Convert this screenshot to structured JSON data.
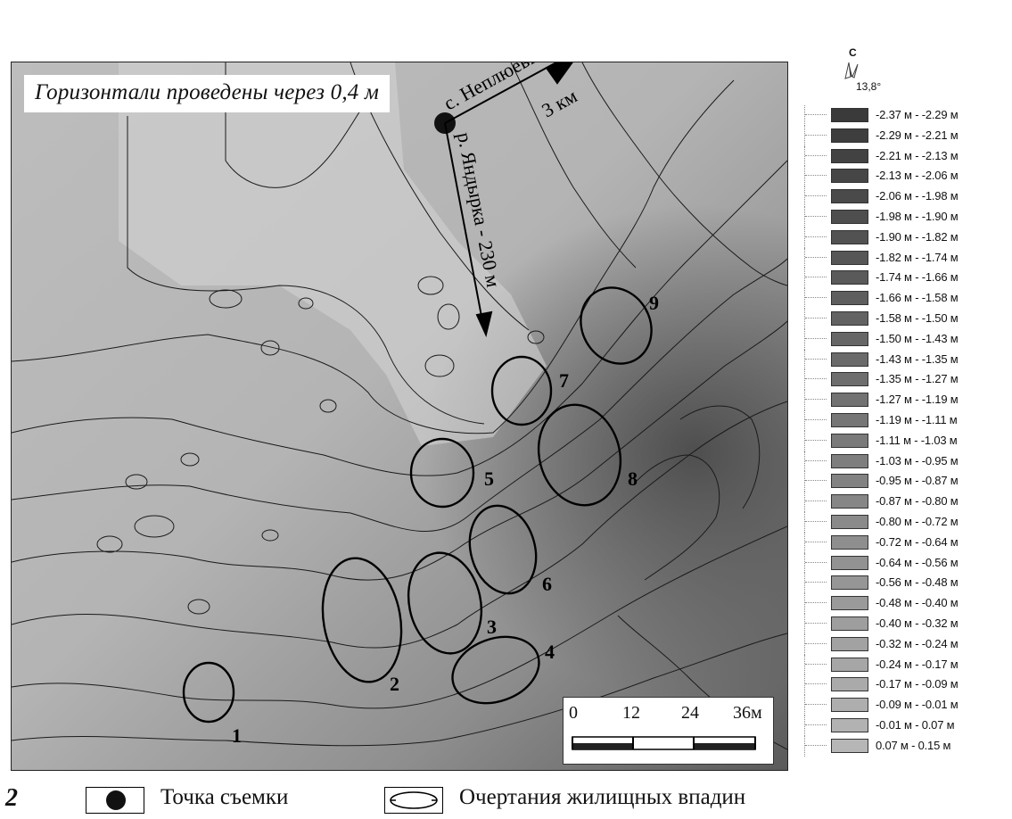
{
  "figure_number": "2",
  "map": {
    "note": "Горизонтали проведены через 0,4 м",
    "village_label": "с. Неплюевка",
    "village_distance": "3 км",
    "river_label": "р. Яндырка - 230 м",
    "depression_numbers": [
      "1",
      "2",
      "3",
      "4",
      "5",
      "6",
      "7",
      "8",
      "9"
    ],
    "scale_labels": [
      "0",
      "12",
      "24",
      "36м"
    ]
  },
  "north": {
    "label": "С",
    "declination": "13,8°"
  },
  "legend": {
    "ranges": [
      {
        "range": "-2.37 м -  -2.29 м",
        "color": "#3a3a3a"
      },
      {
        "range": "-2.29 м -  -2.21 м",
        "color": "#3e3e3e"
      },
      {
        "range": "-2.21 м -  -2.13 м",
        "color": "#424242"
      },
      {
        "range": "-2.13 м -  -2.06 м",
        "color": "#464646"
      },
      {
        "range": "-2.06 м -  -1.98 м",
        "color": "#4a4a4a"
      },
      {
        "range": "-1.98 м -  -1.90 м",
        "color": "#4e4e4e"
      },
      {
        "range": "-1.90 м -  -1.82 м",
        "color": "#525252"
      },
      {
        "range": "-1.82 м -  -1.74 м",
        "color": "#565656"
      },
      {
        "range": "-1.74 м -  -1.66 м",
        "color": "#5a5a5a"
      },
      {
        "range": "-1.66 м -  -1.58 м",
        "color": "#5e5e5e"
      },
      {
        "range": "-1.58 м -  -1.50 м",
        "color": "#626262"
      },
      {
        "range": "-1.50 м -  -1.43 м",
        "color": "#666666"
      },
      {
        "range": "-1.43 м -  -1.35 м",
        "color": "#6a6a6a"
      },
      {
        "range": "-1.35 м -  -1.27 м",
        "color": "#6e6e6e"
      },
      {
        "range": "-1.27 м -  -1.19 м",
        "color": "#727272"
      },
      {
        "range": "-1.19 м -  -1.11 м",
        "color": "#767676"
      },
      {
        "range": "-1.11 м -  -1.03 м",
        "color": "#7a7a7a"
      },
      {
        "range": "-1.03 м -  -0.95 м",
        "color": "#7e7e7e"
      },
      {
        "range": "-0.95 м -  -0.87 м",
        "color": "#828282"
      },
      {
        "range": "-0.87 м -  -0.80 м",
        "color": "#868686"
      },
      {
        "range": "-0.80 м -  -0.72 м",
        "color": "#8a8a8a"
      },
      {
        "range": "-0.72 м -  -0.64 м",
        "color": "#8e8e8e"
      },
      {
        "range": "-0.64 м -  -0.56 м",
        "color": "#929292"
      },
      {
        "range": "-0.56 м -  -0.48 м",
        "color": "#969696"
      },
      {
        "range": "-0.48 м -  -0.40 м",
        "color": "#9a9a9a"
      },
      {
        "range": "-0.40 м -  -0.32 м",
        "color": "#9e9e9e"
      },
      {
        "range": "-0.32 м -  -0.24 м",
        "color": "#a2a2a2"
      },
      {
        "range": "-0.24 м -  -0.17 м",
        "color": "#a6a6a6"
      },
      {
        "range": "-0.17 м -  -0.09 м",
        "color": "#aaaaaa"
      },
      {
        "range": "-0.09 м -  -0.01 м",
        "color": "#aeaeae"
      },
      {
        "range": "-0.01 м -  0.07 м",
        "color": "#b2b2b2"
      },
      {
        "range": "0.07 м -  0.15 м",
        "color": "#b6b6b6"
      }
    ]
  },
  "footer": {
    "survey_point_label": "Точка съемки",
    "depression_outline_label": "Очертания жилищных впадин"
  }
}
